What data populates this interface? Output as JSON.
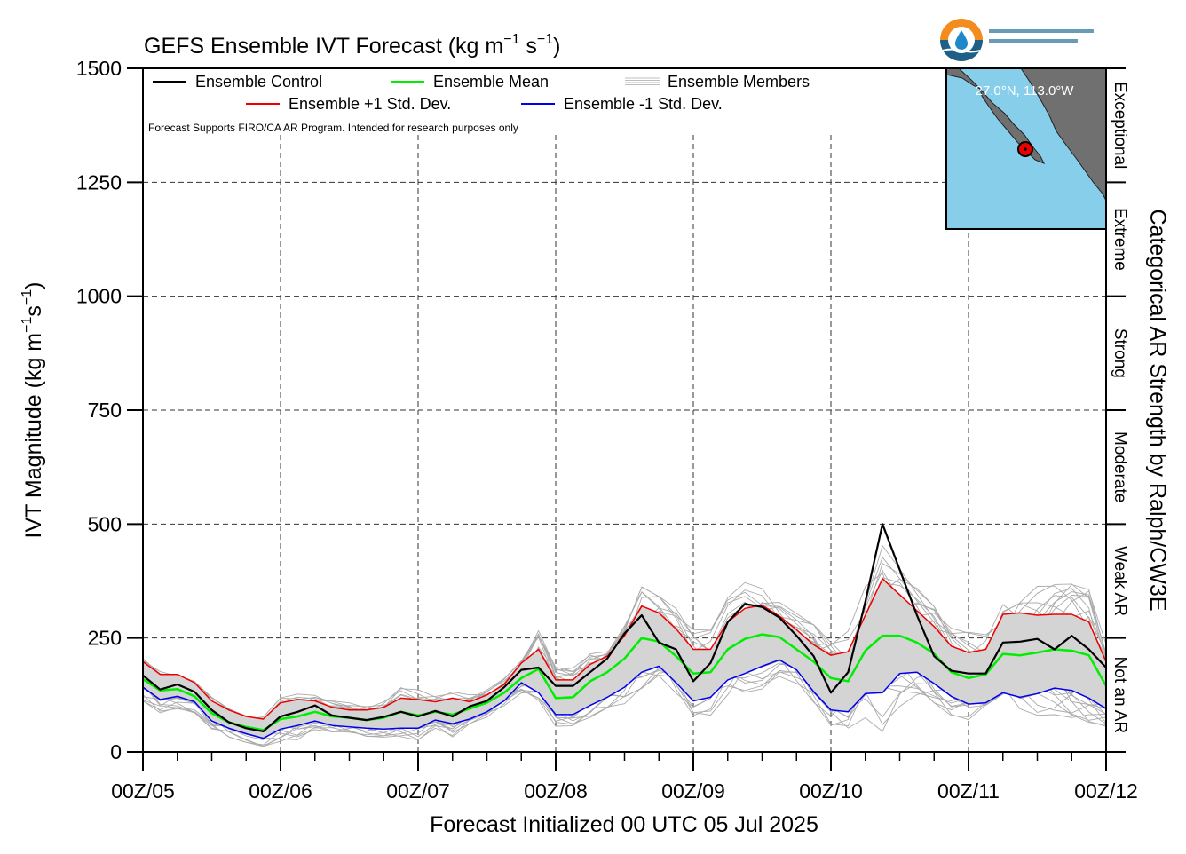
{
  "chart_data": {
    "type": "line",
    "title": "GEFS Ensemble IVT Forecast (kg m",
    "title_exp1": "−1",
    "title_mid": " s",
    "title_exp2": "−1",
    "title_end": ")",
    "xlabel": "Forecast Initialized 00 UTC 05 Jul 2025",
    "ylabel": "IVT Magnitude (kg m",
    "ylabel_exp1": "−1",
    "ylabel_mid": "s",
    "ylabel_exp2": "−1",
    "ylabel_end": ")",
    "right_label": "Categorical AR Strength by Ralph/CW3E",
    "ylim": [
      0,
      1500
    ],
    "yticks": [
      0,
      250,
      500,
      750,
      1000,
      1250,
      1500
    ],
    "xlim": [
      0,
      168
    ],
    "xticks": [
      {
        "h": 0,
        "label": "00Z/05"
      },
      {
        "h": 24,
        "label": "00Z/06"
      },
      {
        "h": 48,
        "label": "00Z/07"
      },
      {
        "h": 72,
        "label": "00Z/08"
      },
      {
        "h": 96,
        "label": "00Z/09"
      },
      {
        "h": 120,
        "label": "00Z/10"
      },
      {
        "h": 144,
        "label": "00Z/11"
      },
      {
        "h": 168,
        "label": "00Z/12"
      }
    ],
    "grid": true,
    "categories_ar": [
      {
        "label": "Not an AR",
        "from": 0,
        "to": 250
      },
      {
        "label": "Weak AR",
        "from": 250,
        "to": 500
      },
      {
        "label": "Moderate",
        "from": 500,
        "to": 750
      },
      {
        "label": "Strong",
        "from": 750,
        "to": 1000
      },
      {
        "label": "Extreme",
        "from": 1000,
        "to": 1250
      },
      {
        "label": "Exceptional",
        "from": 1250,
        "to": 1500
      }
    ],
    "legend": [
      {
        "name": "Ensemble Control",
        "color": "#000000"
      },
      {
        "name": "Ensemble Mean",
        "color": "#00ee00"
      },
      {
        "name": "Ensemble Members",
        "color": "#aaaaaa"
      },
      {
        "name": "Ensemble +1 Std. Dev.",
        "color": "#ee0000"
      },
      {
        "name": "Ensemble -1 Std. Dev.",
        "color": "#0000ee"
      }
    ],
    "note": "Forecast Supports FIRO/CA AR Program. Intended for research purposes only",
    "inset_label": "27.0°N, 113.0°W",
    "x_hours": [
      0,
      3,
      6,
      9,
      12,
      15,
      18,
      21,
      24,
      27,
      30,
      33,
      36,
      39,
      42,
      45,
      48,
      51,
      54,
      57,
      60,
      63,
      66,
      69,
      72,
      75,
      78,
      81,
      84,
      87,
      90,
      93,
      96,
      99,
      102,
      105,
      108,
      111,
      114,
      117,
      120,
      123,
      126,
      129,
      132,
      135,
      138,
      141,
      144,
      147,
      150,
      153,
      156,
      159,
      162,
      165,
      168
    ],
    "series": [
      {
        "name": "Ensemble Control",
        "color": "#000000",
        "values": [
          168,
          137,
          148,
          132,
          92,
          65,
          52,
          45,
          78,
          88,
          102,
          80,
          75,
          70,
          77,
          88,
          78,
          90,
          78,
          100,
          112,
          142,
          180,
          185,
          145,
          145,
          175,
          205,
          260,
          300,
          240,
          225,
          155,
          195,
          285,
          325,
          318,
          295,
          255,
          210,
          130,
          175,
          330,
          500,
          400,
          300,
          210,
          178,
          172,
          172,
          240,
          242,
          248,
          225,
          255,
          225,
          185
        ]
      },
      {
        "name": "Ensemble Mean",
        "color": "#00ee00",
        "values": [
          160,
          135,
          138,
          122,
          85,
          65,
          55,
          48,
          72,
          78,
          88,
          78,
          75,
          70,
          75,
          88,
          80,
          88,
          82,
          95,
          108,
          130,
          162,
          182,
          118,
          120,
          155,
          175,
          205,
          250,
          242,
          210,
          172,
          175,
          225,
          248,
          258,
          252,
          225,
          198,
          162,
          155,
          222,
          255,
          255,
          240,
          215,
          175,
          162,
          170,
          215,
          212,
          218,
          225,
          222,
          212,
          145
        ]
      },
      {
        "name": "Ensemble +1 Std. Dev.",
        "color": "#ee0000",
        "values": [
          198,
          170,
          170,
          152,
          112,
          92,
          78,
          72,
          108,
          115,
          112,
          98,
          92,
          92,
          98,
          118,
          115,
          110,
          118,
          110,
          125,
          148,
          195,
          225,
          158,
          158,
          192,
          210,
          255,
          320,
          305,
          270,
          225,
          225,
          285,
          315,
          322,
          298,
          268,
          235,
          212,
          220,
          300,
          380,
          345,
          310,
          275,
          232,
          218,
          225,
          302,
          305,
          300,
          302,
          302,
          285,
          198
        ]
      },
      {
        "name": "Ensemble -1 Std. Dev.",
        "color": "#0000ee",
        "values": [
          142,
          115,
          122,
          110,
          68,
          52,
          40,
          30,
          50,
          58,
          68,
          58,
          55,
          52,
          50,
          52,
          52,
          70,
          62,
          72,
          88,
          112,
          152,
          130,
          82,
          82,
          102,
          120,
          142,
          175,
          188,
          152,
          112,
          120,
          158,
          172,
          188,
          202,
          180,
          132,
          92,
          88,
          128,
          130,
          172,
          175,
          150,
          122,
          105,
          108,
          130,
          120,
          128,
          140,
          135,
          118,
          95
        ]
      }
    ]
  }
}
